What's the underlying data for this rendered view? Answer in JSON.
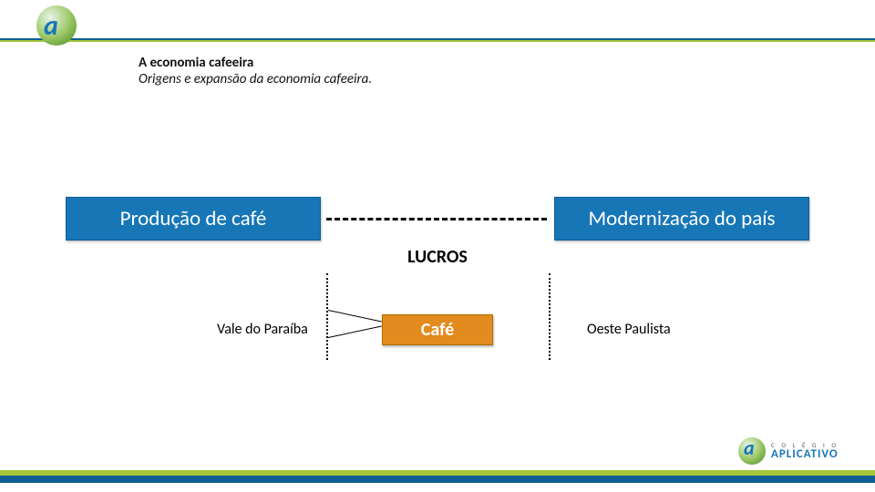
{
  "colors": {
    "blue_fill": "#1676b6",
    "blue_border": "#0f5e93",
    "green": "#a4c639",
    "orange_fill": "#e38b1e",
    "text": "#000000",
    "white": "#ffffff"
  },
  "title": {
    "main": "A economia cafeeira",
    "sub": "Origens e expansão da economia cafeeira.",
    "main_fontsize": 15,
    "sub_fontsize": 15
  },
  "diagram": {
    "left_box": {
      "label": "Produção de café",
      "fontsize": 23
    },
    "right_box": {
      "label": "Modernização do país",
      "fontsize": 23
    },
    "connector_label": "LUCROS",
    "connector_fontsize": 20,
    "center_box": {
      "label": "Café",
      "fontsize": 20
    },
    "left_label": "Vale do Paraíba",
    "right_label": "Oeste Paulista",
    "side_label_fontsize": 16
  },
  "brand": {
    "small": "C O L É G I O",
    "big": "APLICATIVO"
  }
}
